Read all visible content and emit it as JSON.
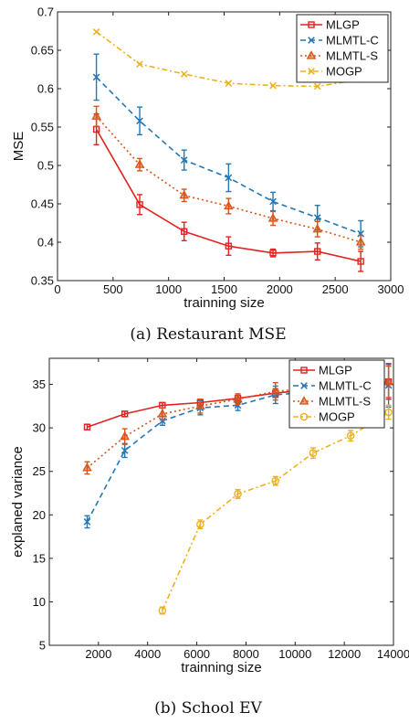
{
  "chart_data": [
    {
      "type": "line",
      "caption": "(a) Restaurant MSE",
      "xlabel": "trainning size",
      "ylabel": "MSE",
      "xlim": [
        0,
        3000
      ],
      "ylim": [
        0.35,
        0.7
      ],
      "xticks": [
        0,
        500,
        1000,
        1500,
        2000,
        2500,
        3000
      ],
      "yticks": [
        0.35,
        0.4,
        0.45,
        0.5,
        0.55,
        0.6,
        0.65,
        0.7
      ],
      "xtick_labels": [
        "0",
        "500",
        "1000",
        "1500",
        "2000",
        "2500",
        "3000"
      ],
      "ytick_labels": [
        "0.35",
        "0.4",
        "0.45",
        "0.5",
        "0.55",
        "0.6",
        "0.65",
        "0.7"
      ],
      "grid": false,
      "legend_position": "top-right",
      "x": [
        350,
        740,
        1140,
        1540,
        1940,
        2340,
        2730
      ],
      "series": [
        {
          "name": "MLGP",
          "color": "#e3221f",
          "dash": "solid",
          "marker": "square",
          "values": [
            0.547,
            0.449,
            0.414,
            0.395,
            0.386,
            0.388,
            0.375
          ],
          "errors": [
            0.02,
            0.013,
            0.012,
            0.012,
            0.005,
            0.011,
            0.013
          ]
        },
        {
          "name": "MLMTL-C",
          "color": "#2277b4",
          "dash": "dashed",
          "marker": "x",
          "values": [
            0.615,
            0.558,
            0.507,
            0.484,
            0.453,
            0.432,
            0.411
          ],
          "errors": [
            0.03,
            0.018,
            0.013,
            0.018,
            0.012,
            0.016,
            0.017
          ]
        },
        {
          "name": "MLMTL-S",
          "color": "#d95319",
          "dash": "dotted",
          "marker": "triangle",
          "values": [
            0.564,
            0.501,
            0.461,
            0.447,
            0.431,
            0.417,
            0.4
          ],
          "errors": [
            0.013,
            0.008,
            0.008,
            0.01,
            0.009,
            0.01,
            0.009
          ]
        },
        {
          "name": "MOGP",
          "color": "#edb120",
          "dash": "dashdot",
          "marker": "x",
          "values": [
            0.674,
            0.632,
            0.619,
            0.607,
            0.604,
            0.603,
            0.612
          ],
          "errors": [
            0,
            0,
            0,
            0,
            0,
            0,
            0
          ]
        }
      ]
    },
    {
      "type": "line",
      "caption": "(b) School EV",
      "xlabel": "trainning size",
      "ylabel": "explaned variance",
      "xlim": [
        0,
        14000
      ],
      "ylim": [
        5,
        38
      ],
      "xticks": [
        2000,
        4000,
        6000,
        8000,
        10000,
        12000,
        14000
      ],
      "yticks": [
        5,
        10,
        15,
        20,
        25,
        30,
        35
      ],
      "xtick_labels": [
        "2000",
        "4000",
        "6000",
        "8000",
        "10000",
        "12000",
        "14000"
      ],
      "ytick_labels": [
        "5",
        "10",
        "15",
        "20",
        "25",
        "30",
        "35"
      ],
      "grid": false,
      "legend_position": "top-right",
      "series": [
        {
          "name": "MLGP",
          "color": "#e3221f",
          "dash": "solid",
          "marker": "square",
          "x": [
            1540,
            3070,
            4600,
            6140,
            7670,
            9200,
            13800
          ],
          "values": [
            30.1,
            31.6,
            32.6,
            32.9,
            33.4,
            34.0,
            35.3
          ],
          "errors": [
            0.3,
            0.3,
            0.3,
            0.4,
            0.5,
            0.5,
            2.0
          ]
        },
        {
          "name": "MLMTL-C",
          "color": "#2277b4",
          "dash": "dashed",
          "marker": "x",
          "x": [
            1540,
            3070,
            4600,
            6140,
            7670,
            9200,
            13800
          ],
          "values": [
            19.2,
            27.4,
            30.8,
            32.3,
            32.6,
            33.8,
            34.9
          ],
          "errors": [
            0.7,
            0.8,
            0.5,
            0.8,
            0.6,
            1.0,
            2.5
          ]
        },
        {
          "name": "MLMTL-S",
          "color": "#d95319",
          "dash": "dotted",
          "marker": "triangle",
          "x": [
            1540,
            3070,
            4600,
            6140,
            7670,
            9200,
            13800
          ],
          "values": [
            25.4,
            29.0,
            31.6,
            32.5,
            33.3,
            34.2,
            35.3
          ],
          "errors": [
            0.7,
            0.9,
            0.7,
            0.8,
            0.6,
            1.0,
            1.8
          ]
        },
        {
          "name": "MOGP",
          "color": "#edb120",
          "dash": "dashdot",
          "marker": "circle",
          "x": [
            4600,
            6140,
            7670,
            9200,
            10730,
            12260,
            13800
          ],
          "values": [
            9.0,
            18.9,
            22.4,
            23.9,
            27.1,
            29.1,
            31.8
          ],
          "errors": [
            0.4,
            0.5,
            0.5,
            0.5,
            0.6,
            0.6,
            0.8
          ]
        }
      ]
    }
  ]
}
